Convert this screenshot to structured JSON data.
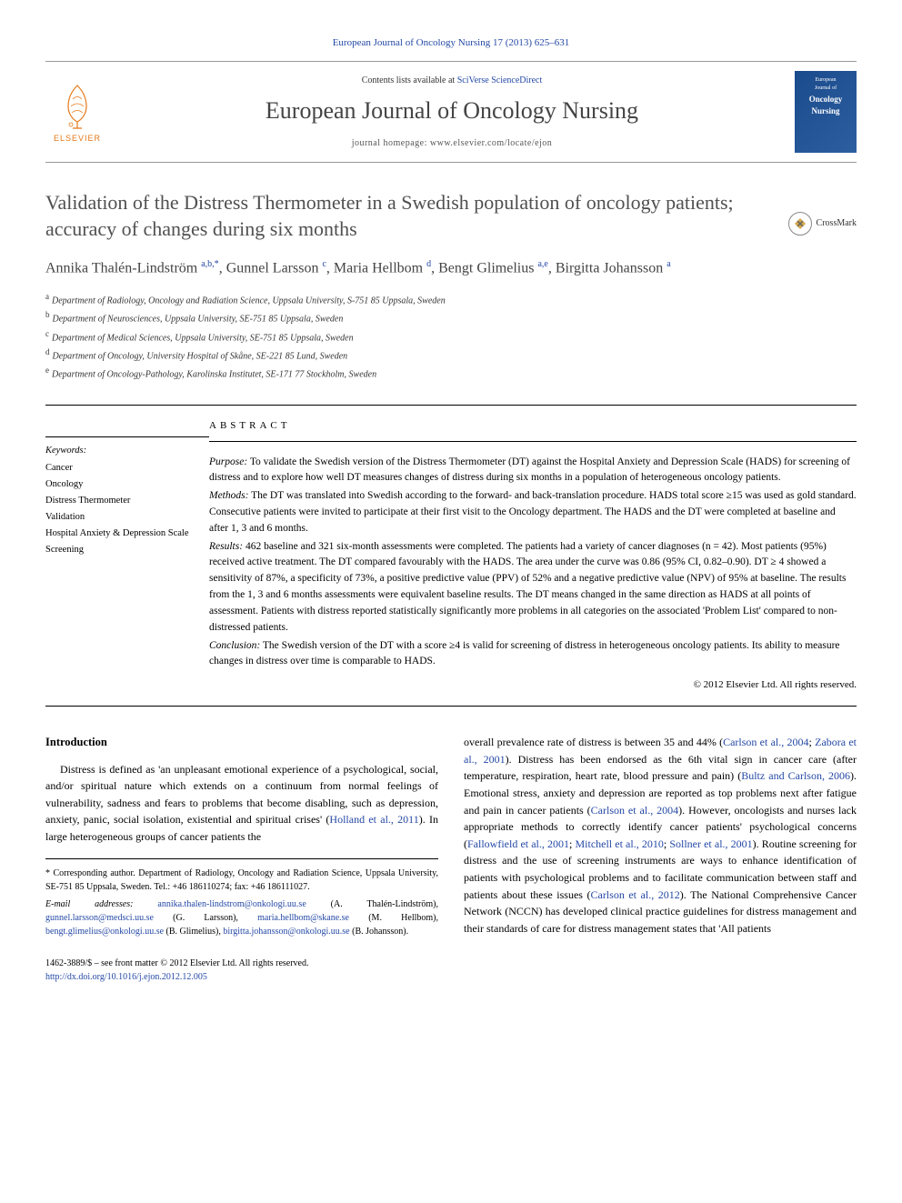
{
  "citation": "European Journal of Oncology Nursing 17 (2013) 625–631",
  "masthead": {
    "contents_prefix": "Contents lists available at ",
    "contents_link": "SciVerse ScienceDirect",
    "journal_name": "European Journal of Oncology Nursing",
    "homepage_prefix": "journal homepage: ",
    "homepage_url": "www.elsevier.com/locate/ejon",
    "elsevier_label": "ELSEVIER",
    "cover_sub1": "European",
    "cover_sub2": "Journal of",
    "cover_title1": "Oncology",
    "cover_title2": "Nursing"
  },
  "crossmark_label": "CrossMark",
  "title": "Validation of the Distress Thermometer in a Swedish population of oncology patients; accuracy of changes during six months",
  "authors_html": "Annika Thalén-Lindström <sup>a,b,*</sup>, Gunnel Larsson <sup>c</sup>, Maria Hellbom <sup>d</sup>, Bengt Glimelius <sup>a,e</sup>, Birgitta Johansson <sup>a</sup>",
  "affiliations": [
    {
      "sup": "a",
      "text": "Department of Radiology, Oncology and Radiation Science, Uppsala University, S-751 85 Uppsala, Sweden"
    },
    {
      "sup": "b",
      "text": "Department of Neurosciences, Uppsala University, SE-751 85 Uppsala, Sweden"
    },
    {
      "sup": "c",
      "text": "Department of Medical Sciences, Uppsala University, SE-751 85 Uppsala, Sweden"
    },
    {
      "sup": "d",
      "text": "Department of Oncology, University Hospital of Skåne, SE-221 85 Lund, Sweden"
    },
    {
      "sup": "e",
      "text": "Department of Oncology-Pathology, Karolinska Institutet, SE-171 77 Stockholm, Sweden"
    }
  ],
  "abstract": {
    "heading": "ABSTRACT",
    "kw_heading": "Keywords:",
    "keywords": [
      "Cancer",
      "Oncology",
      "Distress Thermometer",
      "Validation",
      "Hospital Anxiety & Depression Scale",
      "Screening"
    ],
    "purpose_label": "Purpose:",
    "purpose": " To validate the Swedish version of the Distress Thermometer (DT) against the Hospital Anxiety and Depression Scale (HADS) for screening of distress and to explore how well DT measures changes of distress during six months in a population of heterogeneous oncology patients.",
    "methods_label": "Methods:",
    "methods": " The DT was translated into Swedish according to the forward- and back-translation procedure. HADS total score ≥15 was used as gold standard. Consecutive patients were invited to participate at their first visit to the Oncology department. The HADS and the DT were completed at baseline and after 1, 3 and 6 months.",
    "results_label": "Results:",
    "results": " 462 baseline and 321 six-month assessments were completed. The patients had a variety of cancer diagnoses (n = 42). Most patients (95%) received active treatment. The DT compared favourably with the HADS. The area under the curve was 0.86 (95% CI, 0.82–0.90). DT ≥ 4 showed a sensitivity of 87%, a specificity of 73%, a positive predictive value (PPV) of 52% and a negative predictive value (NPV) of 95% at baseline. The results from the 1, 3 and 6 months assessments were equivalent baseline results. The DT means changed in the same direction as HADS at all points of assessment. Patients with distress reported statistically significantly more problems in all categories on the associated 'Problem List' compared to non-distressed patients.",
    "conclusion_label": "Conclusion:",
    "conclusion": " The Swedish version of the DT with a score ≥4 is valid for screening of distress in heterogeneous oncology patients. Its ability to measure changes in distress over time is comparable to HADS.",
    "copyright": "© 2012 Elsevier Ltd. All rights reserved."
  },
  "intro": {
    "heading": "Introduction",
    "para1_a": "Distress is defined as 'an unpleasant emotional experience of a psychological, social, and/or spiritual nature which extends on a continuum from normal feelings of vulnerability, sadness and fears to problems that become disabling, such as depression, anxiety, panic, social isolation, existential and spiritual crises' (",
    "para1_ref1": "Holland et al., 2011",
    "para1_b": "). In large heterogeneous groups of cancer patients the",
    "para1_c": "overall prevalence rate of distress is between 35 and 44% (",
    "para1_ref2": "Carlson et al., 2004",
    "para1_d": "; ",
    "para1_ref3": "Zabora et al., 2001",
    "para1_e": "). Distress has been endorsed as the 6th vital sign in cancer care (after temperature, respiration, heart rate, blood pressure and pain) (",
    "para1_ref4": "Bultz and Carlson, 2006",
    "para1_f": "). Emotional stress, anxiety and depression are reported as top problems next after fatigue and pain in cancer patients (",
    "para1_ref5": "Carlson et al., 2004",
    "para1_g": "). However, oncologists and nurses lack appropriate methods to correctly identify cancer patients' psychological concerns (",
    "para1_ref6": "Fallowfield et al., 2001",
    "para1_h": "; ",
    "para1_ref7": "Mitchell et al., 2010",
    "para1_i": "; ",
    "para1_ref8": "Sollner et al., 2001",
    "para1_j": "). Routine screening for distress and the use of screening instruments are ways to enhance identification of patients with psychological problems and to facilitate communication between staff and patients about these issues (",
    "para1_ref9": "Carlson et al., 2012",
    "para1_k": "). The National Comprehensive Cancer Network (NCCN) has developed clinical practice guidelines for distress management and their standards of care for distress management states that 'All patients"
  },
  "footnotes": {
    "corr": "* Corresponding author. Department of Radiology, Oncology and Radiation Science, Uppsala University, SE-751 85 Uppsala, Sweden. Tel.: +46 186110274; fax: +46 186111027.",
    "email_label": "E-mail addresses:",
    "e1": "annika.thalen-lindstrom@onkologi.uu.se",
    "n1": " (A. Thalén-Lindström), ",
    "e2": "gunnel.larsson@medsci.uu.se",
    "n2": " (G. Larsson), ",
    "e3": "maria.hellbom@skane.se",
    "n3": " (M. Hellbom), ",
    "e4": "bengt.glimelius@onkologi.uu.se",
    "n4": " (B. Glimelius), ",
    "e5": "birgitta.johansson@onkologi.uu.se",
    "n5": " (B. Johansson)."
  },
  "footer": {
    "line1": "1462-3889/$ – see front matter © 2012 Elsevier Ltd. All rights reserved.",
    "doi": "http://dx.doi.org/10.1016/j.ejon.2012.12.005"
  },
  "colors": {
    "link": "#2448a5",
    "elsevier_orange": "#e67817",
    "title_gray": "#505050",
    "cover_blue": "#1a4b8c"
  }
}
